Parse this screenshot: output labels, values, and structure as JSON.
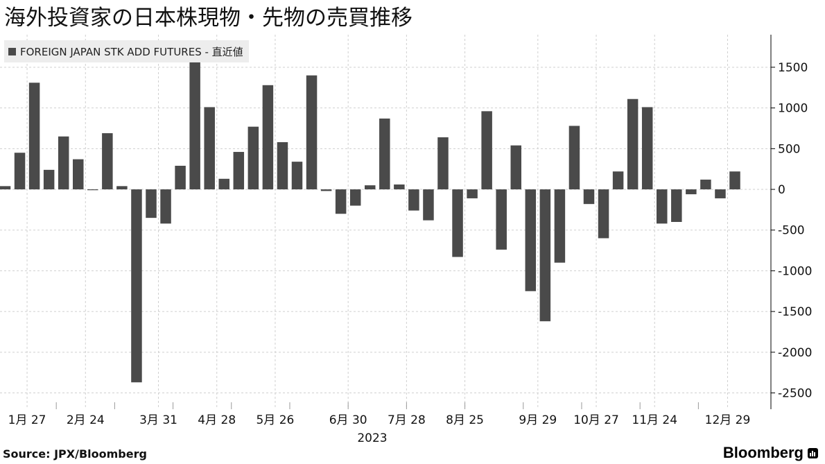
{
  "title": "海外投資家の日本株現物・先物の売買推移",
  "source": "Source: JPX/Bloomberg",
  "brand": "Bloomberg",
  "chart_data": {
    "type": "bar",
    "series": [
      {
        "name": "FOREIGN JAPAN STK ADD FUTURES - 直近値",
        "color": "#4a4a4a",
        "values": [
          40,
          450,
          1310,
          240,
          650,
          370,
          -10,
          690,
          40,
          -2370,
          -350,
          -420,
          290,
          1590,
          1010,
          130,
          460,
          770,
          1280,
          580,
          340,
          1400,
          -20,
          -300,
          -200,
          50,
          870,
          60,
          -260,
          -380,
          640,
          -830,
          -110,
          960,
          -740,
          540,
          -1250,
          -1620,
          -900,
          780,
          -180,
          -600,
          220,
          1110,
          1010,
          -420,
          -400,
          -60,
          120,
          -110,
          220
        ]
      }
    ],
    "ylim": [
      -2700,
      1900
    ],
    "yticks": [
      1500,
      1000,
      500,
      0,
      -500,
      -1000,
      -1500,
      -2000,
      -2500
    ],
    "xtick_labels": [
      {
        "label": "1月 27",
        "index": 1.5
      },
      {
        "label": "2月 24",
        "index": 5.5
      },
      {
        "label": "3月 31",
        "index": 10.5
      },
      {
        "label": "4月 28",
        "index": 14.5
      },
      {
        "label": "5月 26",
        "index": 18.5
      },
      {
        "label": "6月 30",
        "index": 23.5
      },
      {
        "label": "7月 28",
        "index": 27.5
      },
      {
        "label": "8月 25",
        "index": 31.5
      },
      {
        "label": "9月 29",
        "index": 36.5
      },
      {
        "label": "10月 27",
        "index": 40.5
      },
      {
        "label": "11月 24",
        "index": 44.5
      },
      {
        "label": "12月 29",
        "index": 49.5
      }
    ],
    "year_label": "2023",
    "grid": true,
    "legend": "top-left"
  }
}
